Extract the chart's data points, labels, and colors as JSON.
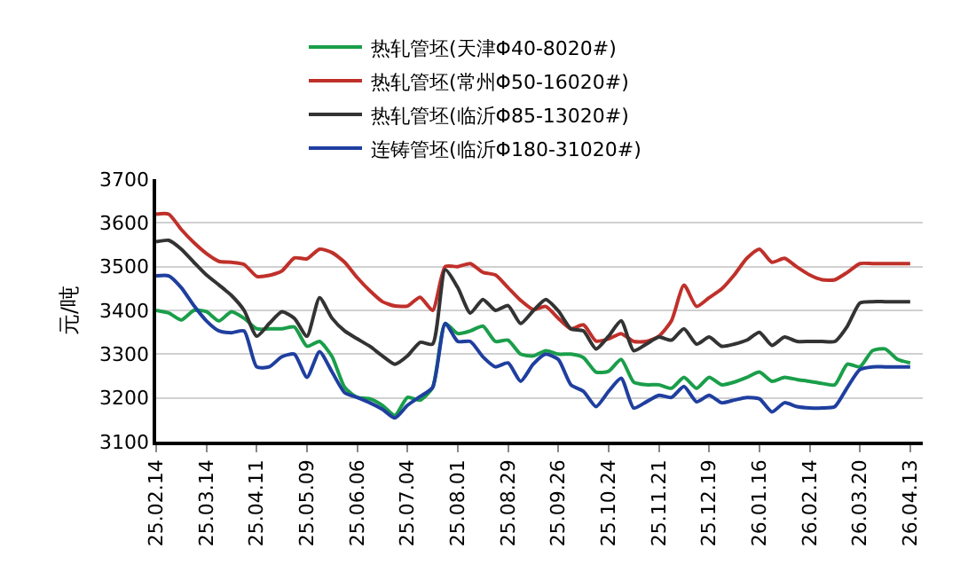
{
  "chart_data": {
    "type": "line",
    "ylabel": "元/吨",
    "categories": [
      "25.02.14",
      null,
      null,
      null,
      "25.03.14",
      null,
      null,
      null,
      "25.04.11",
      null,
      null,
      null,
      "25.05.09",
      null,
      null,
      null,
      "25.06.06",
      null,
      null,
      null,
      "25.07.04",
      null,
      null,
      null,
      "25.08.01",
      null,
      null,
      null,
      "25.08.29",
      null,
      null,
      null,
      "25.09.26",
      null,
      null,
      null,
      "25.10.24",
      null,
      null,
      null,
      "25.11.21",
      null,
      null,
      null,
      "25.12.19",
      null,
      null,
      null,
      "26.01.16",
      null,
      null,
      null,
      "26.02.14",
      null,
      null,
      null,
      "26.03.20",
      null,
      null,
      null,
      "26.04.13"
    ],
    "series": [
      {
        "name": "热轧管坯(天津Φ40-8020#)",
        "color": "#1a9e4a",
        "values": [
          3400,
          3394,
          3378,
          3400,
          3397,
          3376,
          3397,
          3382,
          3358,
          3358,
          3358,
          3362,
          3318,
          3329,
          3294,
          3224,
          3201,
          3198,
          3183,
          3160,
          3201,
          3195,
          3224,
          3370,
          3347,
          3353,
          3364,
          3329,
          3332,
          3300,
          3296,
          3308,
          3300,
          3300,
          3292,
          3259,
          3261,
          3288,
          3236,
          3230,
          3230,
          3222,
          3247,
          3222,
          3247,
          3230,
          3236,
          3247,
          3259,
          3238,
          3247,
          3242,
          3238,
          3233,
          3230,
          3277,
          3271,
          3308,
          3312,
          3288,
          3280
        ]
      },
      {
        "name": "热轧管坯(常州Φ50-16020#)",
        "color": "#c0302a",
        "values": [
          3620,
          3620,
          3585,
          3555,
          3530,
          3512,
          3510,
          3505,
          3478,
          3480,
          3490,
          3520,
          3518,
          3540,
          3532,
          3510,
          3475,
          3445,
          3420,
          3410,
          3410,
          3430,
          3400,
          3500,
          3500,
          3507,
          3487,
          3481,
          3452,
          3423,
          3402,
          3409,
          3382,
          3358,
          3367,
          3330,
          3335,
          3347,
          3329,
          3329,
          3341,
          3376,
          3458,
          3409,
          3429,
          3449,
          3481,
          3519,
          3540,
          3510,
          3519,
          3499,
          3481,
          3470,
          3470,
          3487,
          3507,
          3507,
          3507,
          3507,
          3507
        ]
      },
      {
        "name": "热轧管坯(临沂Φ85-13020#)",
        "color": "#333333",
        "values": [
          3557,
          3560,
          3540,
          3510,
          3481,
          3458,
          3434,
          3400,
          3341,
          3370,
          3397,
          3382,
          3341,
          3429,
          3382,
          3353,
          3335,
          3318,
          3296,
          3277,
          3296,
          3327,
          3323,
          3493,
          3452,
          3394,
          3425,
          3400,
          3411,
          3370,
          3399,
          3425,
          3399,
          3358,
          3353,
          3312,
          3341,
          3376,
          3308,
          3323,
          3339,
          3332,
          3358,
          3323,
          3339,
          3318,
          3323,
          3332,
          3350,
          3320,
          3339,
          3329,
          3329,
          3329,
          3329,
          3364,
          3417,
          3420,
          3420,
          3420,
          3420
        ]
      },
      {
        "name": "连铸管坯(临沂Φ180-31020#)",
        "color": "#1f3f9f",
        "values": [
          3479,
          3479,
          3452,
          3411,
          3376,
          3353,
          3349,
          3353,
          3271,
          3271,
          3294,
          3300,
          3247,
          3306,
          3259,
          3212,
          3201,
          3189,
          3174,
          3154,
          3183,
          3203,
          3224,
          3370,
          3329,
          3329,
          3294,
          3271,
          3280,
          3238,
          3277,
          3300,
          3288,
          3230,
          3215,
          3180,
          3215,
          3245,
          3177,
          3191,
          3206,
          3201,
          3226,
          3191,
          3206,
          3189,
          3195,
          3201,
          3198,
          3168,
          3189,
          3180,
          3177,
          3177,
          3180,
          3224,
          3265,
          3271,
          3271,
          3271,
          3271
        ]
      }
    ],
    "ylim": [
      3100,
      3700
    ],
    "yticks": [
      3100,
      3200,
      3300,
      3400,
      3500,
      3600,
      3700
    ],
    "grid": "y",
    "legend": "top",
    "marker": "none",
    "line_style": "solid"
  }
}
